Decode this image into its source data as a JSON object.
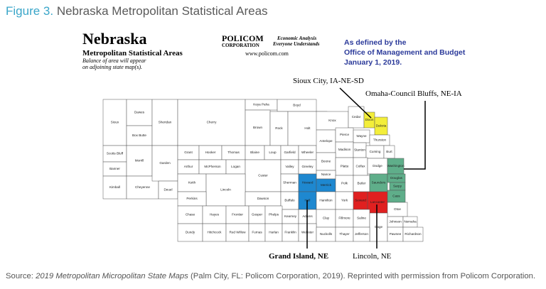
{
  "header": {
    "figure_label": "Figure 3.",
    "title": "Nebraska Metropolitan Statistical Areas"
  },
  "map": {
    "title": "Nebraska",
    "subtitle": "Metropolitan Statistical Areas",
    "note_lines": [
      "Balance of area will appear",
      "on adjoining state map(s)."
    ],
    "publisher_lines": [
      "POLICOM",
      "CORPORATION"
    ],
    "tagline_lines": [
      "Economic Analysis",
      "Everyone Understands"
    ],
    "website": "www.policom.com",
    "defined_by_lines": [
      "As defined by the",
      "Office of Management and Budget",
      "January  1, 2019."
    ],
    "msa_labels": [
      "Sioux City, IA-NE-SD",
      "Omaha-Council Bluffs, NE-IA",
      "Grand Island, NE",
      "Lincoln, NE"
    ],
    "counties": [
      {
        "name": "Sioux",
        "color": "#ffffff"
      },
      {
        "name": "Dawes",
        "color": "#ffffff"
      },
      {
        "name": "Box Butte",
        "color": "#ffffff"
      },
      {
        "name": "Sheridan",
        "color": "#ffffff"
      },
      {
        "name": "Cherry",
        "color": "#ffffff"
      },
      {
        "name": "Keya Paha",
        "color": "#ffffff"
      },
      {
        "name": "Boyd",
        "color": "#ffffff"
      },
      {
        "name": "Brown",
        "color": "#ffffff"
      },
      {
        "name": "Rock",
        "color": "#ffffff"
      },
      {
        "name": "Holt",
        "color": "#ffffff"
      },
      {
        "name": "Knox",
        "color": "#ffffff"
      },
      {
        "name": "Cedar",
        "color": "#ffffff"
      },
      {
        "name": "Dixon",
        "color": "#f3ee3a"
      },
      {
        "name": "Dakota",
        "color": "#f3ee3a"
      },
      {
        "name": "Scotts Bluff",
        "color": "#ffffff"
      },
      {
        "name": "Banner",
        "color": "#ffffff"
      },
      {
        "name": "Kimball",
        "color": "#ffffff"
      },
      {
        "name": "Morrill",
        "color": "#ffffff"
      },
      {
        "name": "Cheyenne",
        "color": "#ffffff"
      },
      {
        "name": "Garden",
        "color": "#ffffff"
      },
      {
        "name": "Deuel",
        "color": "#ffffff"
      },
      {
        "name": "Grant",
        "color": "#ffffff"
      },
      {
        "name": "Hooker",
        "color": "#ffffff"
      },
      {
        "name": "Thomas",
        "color": "#ffffff"
      },
      {
        "name": "Blaine",
        "color": "#ffffff"
      },
      {
        "name": "Loup",
        "color": "#ffffff"
      },
      {
        "name": "Garfield",
        "color": "#ffffff"
      },
      {
        "name": "Wheeler",
        "color": "#ffffff"
      },
      {
        "name": "Antelope",
        "color": "#ffffff"
      },
      {
        "name": "Pierce",
        "color": "#ffffff"
      },
      {
        "name": "Wayne",
        "color": "#ffffff"
      },
      {
        "name": "Thurston",
        "color": "#ffffff"
      },
      {
        "name": "Madison",
        "color": "#ffffff"
      },
      {
        "name": "Stanton",
        "color": "#ffffff"
      },
      {
        "name": "Cuming",
        "color": "#ffffff"
      },
      {
        "name": "Burt",
        "color": "#ffffff"
      },
      {
        "name": "Arthur",
        "color": "#ffffff"
      },
      {
        "name": "McPherson",
        "color": "#ffffff"
      },
      {
        "name": "Logan",
        "color": "#ffffff"
      },
      {
        "name": "Custer",
        "color": "#ffffff"
      },
      {
        "name": "Valley",
        "color": "#ffffff"
      },
      {
        "name": "Greeley",
        "color": "#ffffff"
      },
      {
        "name": "Boone",
        "color": "#ffffff"
      },
      {
        "name": "Platte",
        "color": "#ffffff"
      },
      {
        "name": "Colfax",
        "color": "#ffffff"
      },
      {
        "name": "Dodge",
        "color": "#ffffff"
      },
      {
        "name": "Washington",
        "color": "#5fae8a"
      },
      {
        "name": "Keith",
        "color": "#ffffff"
      },
      {
        "name": "Lincoln",
        "color": "#ffffff"
      },
      {
        "name": "Nance",
        "color": "#ffffff"
      },
      {
        "name": "Sherman",
        "color": "#ffffff"
      },
      {
        "name": "Howard",
        "color": "#1e88d0"
      },
      {
        "name": "Merrick",
        "color": "#1e88d0"
      },
      {
        "name": "Polk",
        "color": "#ffffff"
      },
      {
        "name": "Butler",
        "color": "#ffffff"
      },
      {
        "name": "Saunders",
        "color": "#5fae8a"
      },
      {
        "name": "Douglas",
        "color": "#5fae8a"
      },
      {
        "name": "Sarpy",
        "color": "#5fae8a"
      },
      {
        "name": "Perkins",
        "color": "#ffffff"
      },
      {
        "name": "Dawson",
        "color": "#ffffff"
      },
      {
        "name": "Buffalo",
        "color": "#ffffff"
      },
      {
        "name": "Hall",
        "color": "#1e88d0"
      },
      {
        "name": "Hamilton",
        "color": "#ffffff"
      },
      {
        "name": "York",
        "color": "#ffffff"
      },
      {
        "name": "Seward",
        "color": "#e02020"
      },
      {
        "name": "Lancaster",
        "color": "#e02020"
      },
      {
        "name": "Cass",
        "color": "#5fae8a"
      },
      {
        "name": "Otoe",
        "color": "#ffffff"
      },
      {
        "name": "Chase",
        "color": "#ffffff"
      },
      {
        "name": "Hayes",
        "color": "#ffffff"
      },
      {
        "name": "Frontier",
        "color": "#ffffff"
      },
      {
        "name": "Gosper",
        "color": "#ffffff"
      },
      {
        "name": "Phelps",
        "color": "#ffffff"
      },
      {
        "name": "Kearney",
        "color": "#ffffff"
      },
      {
        "name": "Adams",
        "color": "#ffffff"
      },
      {
        "name": "Clay",
        "color": "#ffffff"
      },
      {
        "name": "Fillmore",
        "color": "#ffffff"
      },
      {
        "name": "Saline",
        "color": "#ffffff"
      },
      {
        "name": "Gage",
        "color": "#ffffff"
      },
      {
        "name": "Johnson",
        "color": "#ffffff"
      },
      {
        "name": "Nemaha",
        "color": "#ffffff"
      },
      {
        "name": "Dundy",
        "color": "#ffffff"
      },
      {
        "name": "Hitchcock",
        "color": "#ffffff"
      },
      {
        "name": "Red Willow",
        "color": "#ffffff"
      },
      {
        "name": "Furnas",
        "color": "#ffffff"
      },
      {
        "name": "Harlan",
        "color": "#ffffff"
      },
      {
        "name": "Franklin",
        "color": "#ffffff"
      },
      {
        "name": "Webster",
        "color": "#ffffff"
      },
      {
        "name": "Nuckolls",
        "color": "#ffffff"
      },
      {
        "name": "Thayer",
        "color": "#ffffff"
      },
      {
        "name": "Jefferson",
        "color": "#ffffff"
      },
      {
        "name": "Pawnee",
        "color": "#ffffff"
      },
      {
        "name": "Richardson",
        "color": "#ffffff"
      }
    ]
  },
  "source": {
    "prefix": "Source:",
    "title": "2019 Metropolitan Micropolitan State Maps",
    "rest": "(Palm City, FL: Policom Corporation, 2019). Reprinted with permission from Policom Corporation."
  }
}
